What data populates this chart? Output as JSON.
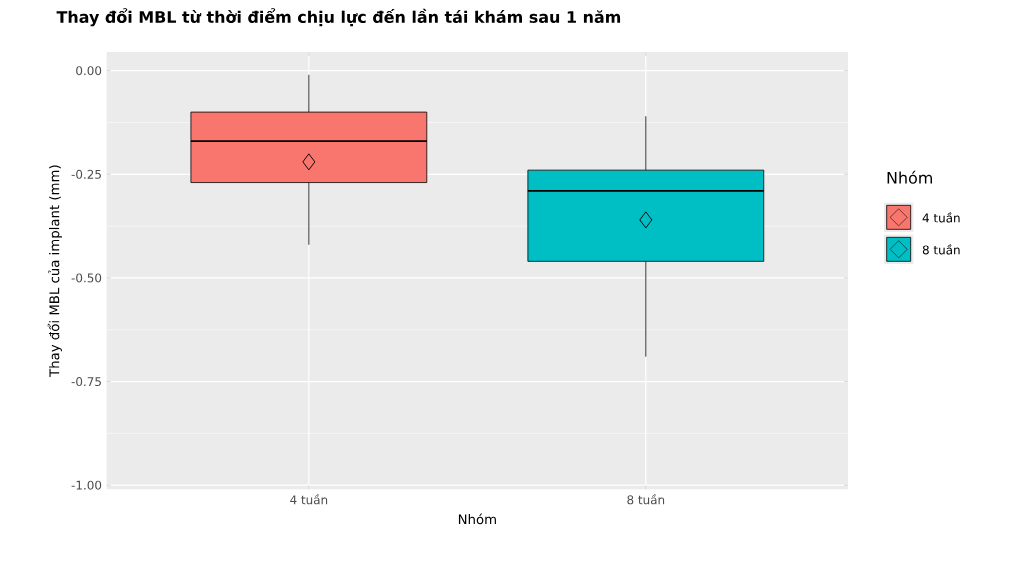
{
  "chart_data": {
    "type": "box",
    "title": "Thay đổi MBL từ thời điểm chịu lực đến lần tái khám sau 1 năm",
    "xlabel": "Nhóm",
    "ylabel": "Thay đổi MBL của implant (mm)",
    "legend_title": "Nhóm",
    "categories": [
      "4 tuần",
      "8 tuần"
    ],
    "series": [
      {
        "name": "4 tuần",
        "color": "#f8766d",
        "boxes": [
          {
            "low": -0.42,
            "q1": -0.27,
            "median": -0.17,
            "q3": -0.1,
            "high": -0.01,
            "mean": -0.22
          },
          null
        ]
      },
      {
        "name": "8 tuần",
        "color": "#00bfc4",
        "boxes": [
          null,
          {
            "low": -0.69,
            "q1": -0.46,
            "median": -0.29,
            "q3": -0.24,
            "high": -0.11,
            "mean": -0.36
          }
        ]
      }
    ],
    "ylim": [
      -1.01,
      0.045
    ],
    "yticks": [
      {
        "value": -1,
        "label": "-1.00"
      },
      {
        "value": -0.75,
        "label": "-0.75"
      },
      {
        "value": -0.5,
        "label": "-0.50"
      },
      {
        "value": -0.25,
        "label": "-0.25"
      },
      {
        "value": 0,
        "label": "0.00"
      }
    ],
    "grid": true,
    "legend": "right",
    "marker": "diamond"
  }
}
